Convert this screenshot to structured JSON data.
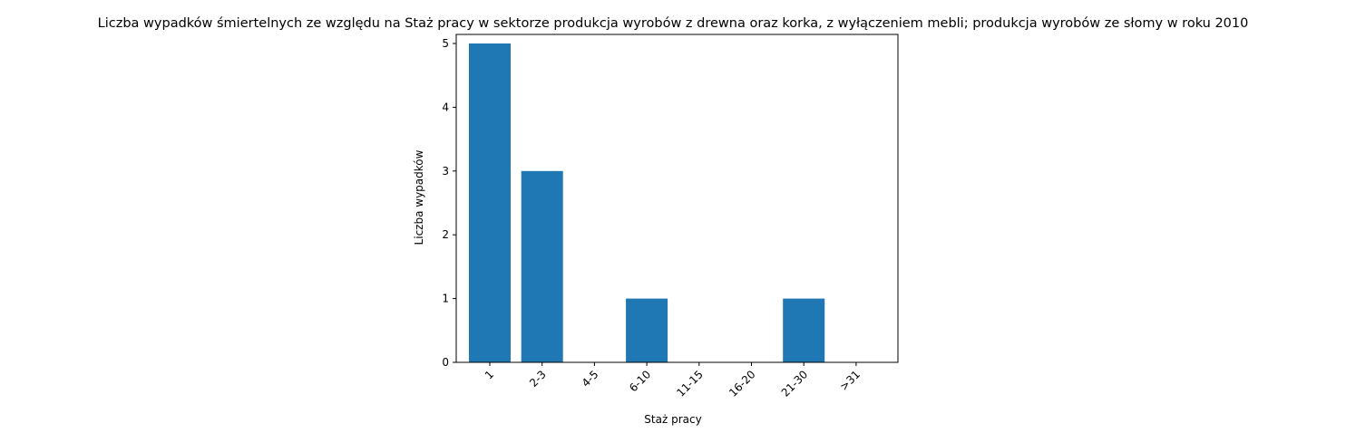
{
  "chart_data": {
    "type": "bar",
    "title": "Liczba wypadków śmiertelnych ze względu na Staż pracy w sektorze produkcja wyrobów z drewna oraz korka, z wyłączeniem mebli; produkcja wyrobów ze słomy w roku 2010",
    "xlabel": "Staż pracy",
    "ylabel": "Liczba wypadków",
    "categories": [
      "1",
      "2-3",
      "4-5",
      "6-10",
      "11-15",
      "16-20",
      "21-30",
      ">31"
    ],
    "values": [
      5,
      3,
      0,
      1,
      0,
      0,
      1,
      0
    ],
    "yticks": [
      "0",
      "1",
      "2",
      "3",
      "4",
      "5"
    ],
    "ylim": [
      0,
      5.0
    ],
    "bar_color": "#1f77b4",
    "grid": false
  }
}
